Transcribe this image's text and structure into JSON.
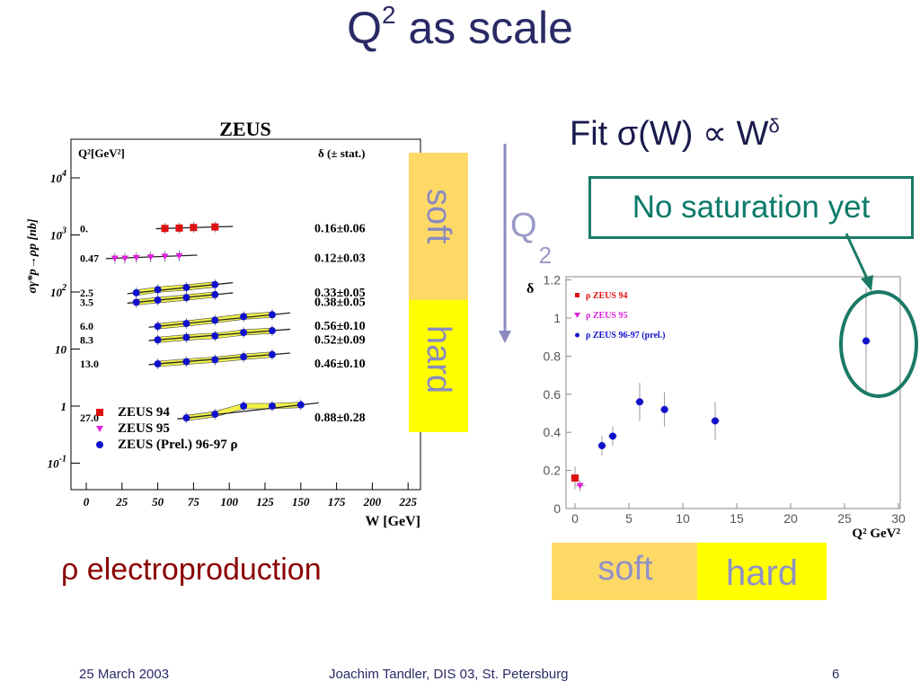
{
  "slide": {
    "title_base": "Q",
    "title_sup": "2",
    "title_rest": " as scale",
    "fit_prefix": "Fit ",
    "fit_sigma": "σ(W) ∝ W",
    "fit_sup": "δ",
    "no_saturation": "No saturation yet",
    "soft_label": "soft",
    "hard_label": "hard",
    "q2_label": "Q",
    "q2_sub": "2",
    "rho_symbol": "ρ",
    "rho_caption": " electroproduction",
    "footer_date": "25 March 2003",
    "footer_author": "Joachim Tandler, DIS 03, St. Petersburg",
    "footer_page": "6"
  },
  "colors": {
    "zeus94": "#dd1111",
    "zeus95": "#dd22dd",
    "zeus9697": "#1111cc",
    "soft_band": "#ffd966",
    "hard_band": "#ffff00",
    "callout": "#1a7a66"
  },
  "chart_data": [
    {
      "type": "scatter",
      "title": "ZEUS",
      "xlabel": "W [GeV]",
      "ylabel": "σγ*p→ρp [nb]",
      "yscale": "log",
      "xlim": [
        0,
        225
      ],
      "xticks": [
        "0",
        "25",
        "50",
        "75",
        "100",
        "125",
        "150",
        "175",
        "200",
        "225"
      ],
      "yticks": [
        "10^4",
        "10^3",
        "10^2",
        "10",
        "1",
        "10^-1"
      ],
      "q2_header": "Q²[GeV²]",
      "delta_header": "δ (± stat.)",
      "legend": [
        "ZEUS 94",
        "ZEUS 95",
        "ZEUS (Prel.) 96-97 ρ"
      ],
      "series": [
        {
          "q2": "0.",
          "delta": "0.16±0.06",
          "source": "ZEUS 94",
          "w": [
            55,
            65,
            75,
            90
          ],
          "y": [
            1300,
            1320,
            1350,
            1380
          ]
        },
        {
          "q2": "0.47",
          "delta": "0.12±0.03",
          "source": "ZEUS 95",
          "w": [
            20,
            27,
            35,
            45,
            55,
            65
          ],
          "y": [
            390,
            390,
            400,
            410,
            420,
            430
          ]
        },
        {
          "q2": "2.5",
          "delta": "0.33±0.05",
          "source": "ZEUS (Prel.) 96-97 ρ",
          "w": [
            35,
            50,
            70,
            90
          ],
          "y": [
            97,
            110,
            120,
            135
          ]
        },
        {
          "q2": "3.5",
          "delta": "0.38±0.05",
          "source": "ZEUS (Prel.) 96-97 ρ",
          "w": [
            35,
            50,
            70,
            90
          ],
          "y": [
            66,
            72,
            80,
            90
          ]
        },
        {
          "q2": "6.0",
          "delta": "0.56±0.10",
          "source": "ZEUS (Prel.) 96-97 ρ",
          "w": [
            50,
            70,
            90,
            110,
            130
          ],
          "y": [
            25,
            28,
            32,
            37,
            40
          ]
        },
        {
          "q2": "8.3",
          "delta": "0.52±0.09",
          "source": "ZEUS (Prel.) 96-97 ρ",
          "w": [
            50,
            70,
            90,
            110,
            130
          ],
          "y": [
            14.5,
            16,
            17,
            19.5,
            21
          ]
        },
        {
          "q2": "13.0",
          "delta": "0.46±0.10",
          "source": "ZEUS (Prel.) 96-97 ρ",
          "w": [
            50,
            70,
            90,
            110,
            130
          ],
          "y": [
            5.5,
            6,
            6.5,
            7.3,
            8
          ]
        },
        {
          "q2": "27.0",
          "delta": "0.88±0.28",
          "source": "ZEUS (Prel.) 96-97 ρ",
          "w": [
            70,
            90,
            110,
            130,
            150
          ],
          "y": [
            0.62,
            0.72,
            1.0,
            1.0,
            1.05
          ]
        }
      ]
    },
    {
      "type": "scatter",
      "xlabel": "Q² GeV²",
      "ylabel": "δ",
      "xlim": [
        -1,
        30
      ],
      "ylim": [
        0,
        1.2
      ],
      "xticks": [
        "0",
        "5",
        "10",
        "15",
        "20",
        "25",
        "30"
      ],
      "yticks": [
        "0",
        "0.2",
        "0.4",
        "0.6",
        "0.8",
        "1",
        "1.2"
      ],
      "series": [
        {
          "name": "ρ ZEUS 94",
          "x": [
            0.0
          ],
          "y": [
            0.16
          ],
          "err": [
            0.06
          ]
        },
        {
          "name": "ρ ZEUS 95",
          "x": [
            0.47
          ],
          "y": [
            0.12
          ],
          "err": [
            0.03
          ]
        },
        {
          "name": "ρ ZEUS 96-97 (prel.)",
          "x": [
            2.5,
            3.5,
            6.0,
            8.3,
            13.0,
            27.0
          ],
          "y": [
            0.33,
            0.38,
            0.56,
            0.52,
            0.46,
            0.88
          ],
          "err": [
            0.05,
            0.05,
            0.1,
            0.09,
            0.1,
            0.28
          ]
        }
      ]
    }
  ]
}
